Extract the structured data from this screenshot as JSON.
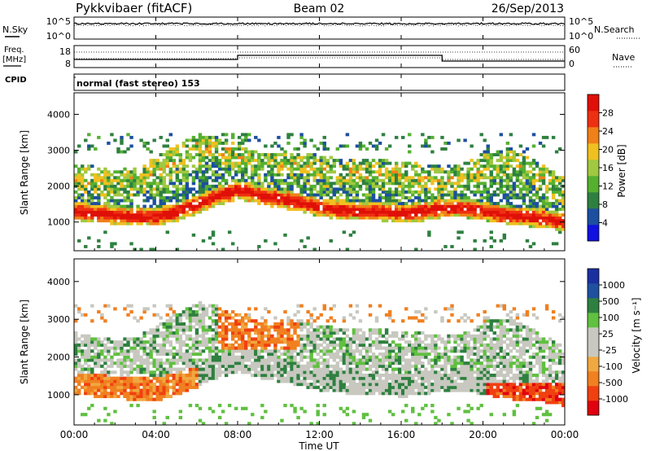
{
  "header": {
    "station": "Pykkvibaer (fitACF)",
    "beam": "Beam 02",
    "date": "26/Sep/2013"
  },
  "strip_labels": {
    "nsky": "N.Sky",
    "nsky_top": "10^5",
    "nsky_bot": "10^0",
    "nsearch": "N.Search",
    "nsearch_top": "10^5",
    "nsearch_bot": "10^0",
    "freq_line1": "Freq.",
    "freq_line2": "[MHz]",
    "freq_top": "18",
    "freq_bot": "8",
    "nave": "Nave",
    "nave_top": "60",
    "nave_bot": "0",
    "cpid": "CPID",
    "cpid_value": "normal (fast stereo) 153"
  },
  "colors": {
    "power": [
      "#1010e0",
      "#1c4fa0",
      "#2e8040",
      "#55b030",
      "#a0c840",
      "#f0c020",
      "#f08018",
      "#ee3012",
      "#e01008"
    ],
    "velocity": [
      "#e00010",
      "#f04010",
      "#f08020",
      "#f0a840",
      "#c8c8c0",
      "#c8c8c0",
      "#60c040",
      "#2e8040",
      "#2050a0",
      "#1a30a0"
    ],
    "noise": "#ffffff"
  },
  "chart_data": [
    {
      "type": "heatmap",
      "name": "power",
      "ylabel": "Slant Range [km]",
      "yticks": [
        "1000",
        "2000",
        "3000",
        "4000"
      ],
      "ylim": [
        200,
        4600
      ],
      "colorbar_label": "Power [dB]",
      "colorbar_ticks": [
        "4",
        "8",
        "12",
        "16",
        "20",
        "24",
        "28"
      ],
      "colorbar_range": [
        0,
        32
      ],
      "x_hours": [
        0,
        1,
        2,
        3,
        4,
        5,
        6,
        7,
        8,
        9,
        10,
        11,
        12,
        13,
        14,
        15,
        16,
        17,
        18,
        19,
        20,
        21,
        22,
        23,
        24
      ],
      "band_center_km": [
        1300,
        1250,
        1200,
        1150,
        1150,
        1300,
        1500,
        1750,
        1900,
        1750,
        1650,
        1550,
        1400,
        1350,
        1300,
        1300,
        1250,
        1300,
        1400,
        1400,
        1300,
        1200,
        1150,
        1100,
        1000
      ],
      "upper_echo_km": [
        2300,
        2200,
        2100,
        2200,
        2500,
        2800,
        3100,
        3000,
        2800,
        2600,
        2600,
        2600,
        2500,
        2400,
        2400,
        2400,
        2300,
        2300,
        2200,
        2300,
        2600,
        2700,
        2500,
        2200,
        1900
      ]
    },
    {
      "type": "heatmap",
      "name": "velocity",
      "ylabel": "Slant Range [km]",
      "yticks": [
        "1000",
        "2000",
        "3000",
        "4000"
      ],
      "ylim": [
        200,
        4600
      ],
      "colorbar_label": "Velocity [m s⁻¹]",
      "colorbar_ticks": [
        "1000",
        "500",
        "100",
        "25",
        "-25",
        "-100",
        "-500",
        "-1000"
      ],
      "xlabel": "Time UT",
      "xticks": [
        "00:00",
        "04:00",
        "08:00",
        "12:00",
        "16:00",
        "20:00",
        "00:00"
      ],
      "xlim": [
        0,
        24
      ]
    }
  ]
}
